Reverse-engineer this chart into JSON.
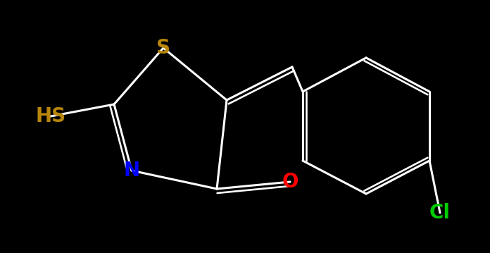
{
  "background_color": "#000000",
  "figsize": [
    6.96,
    3.59
  ],
  "dpi": 100,
  "white": "#FFFFFF",
  "colors": {
    "S": "#B8860B",
    "N": "#0000FF",
    "O": "#FF0000",
    "Cl": "#00CC00",
    "HS": "#B8860B"
  }
}
